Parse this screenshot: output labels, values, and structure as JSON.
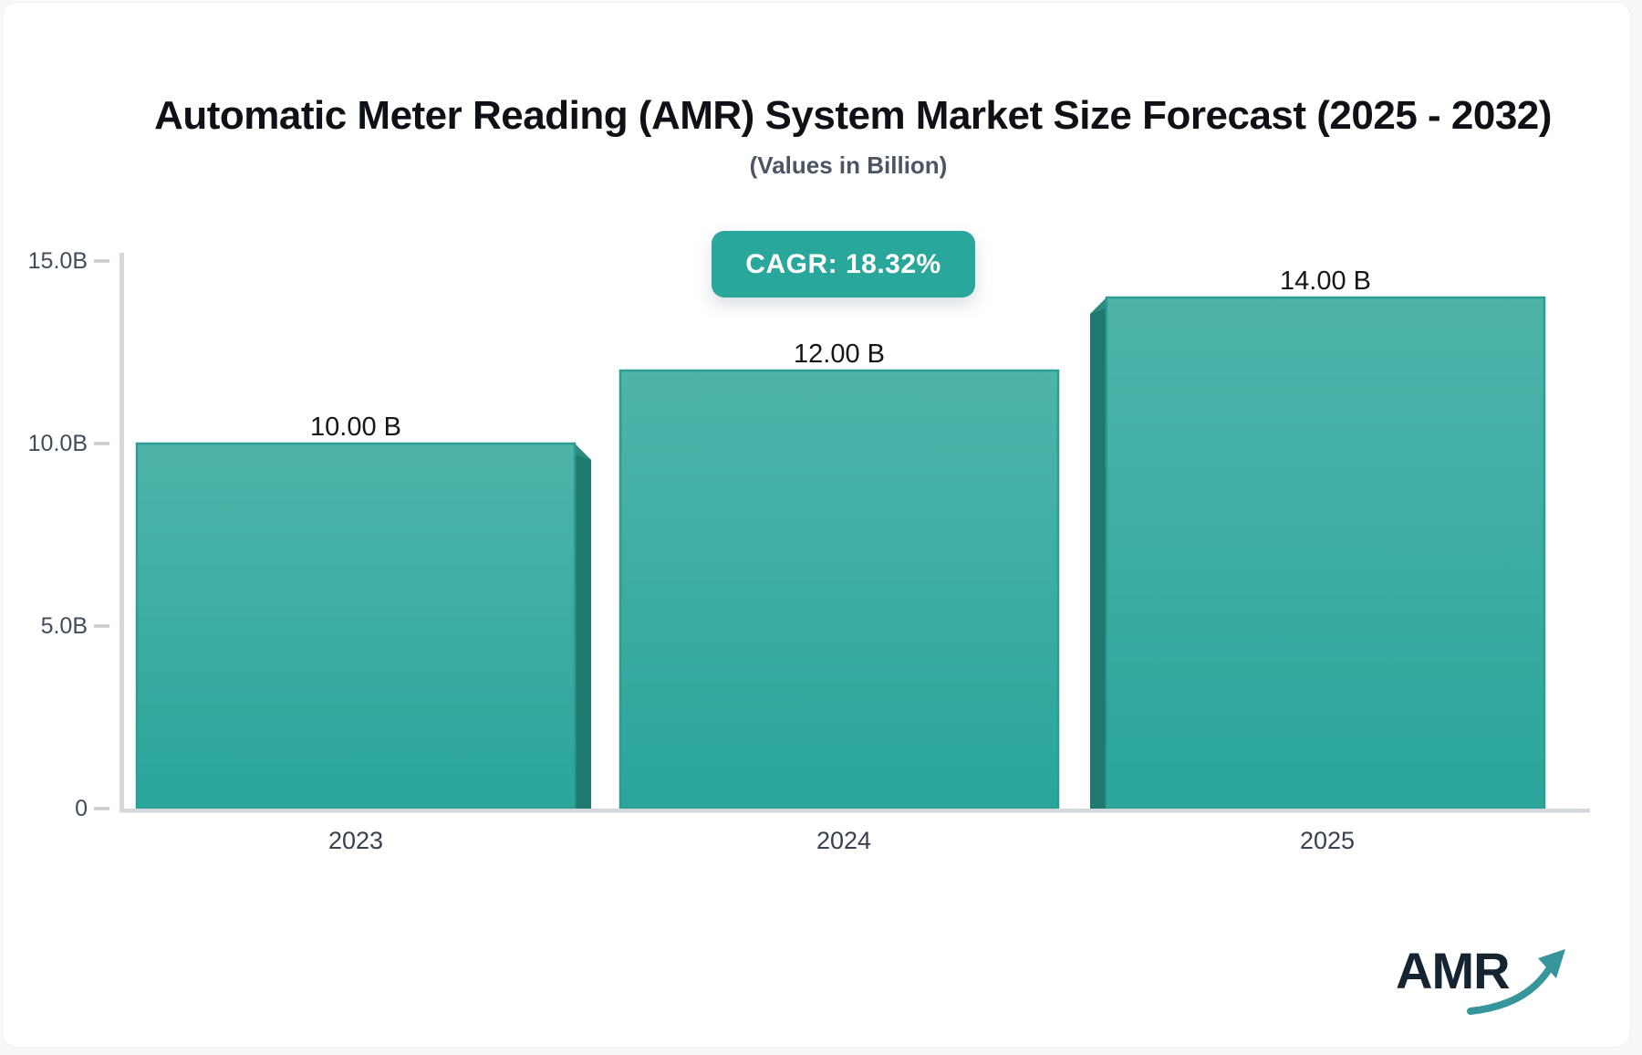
{
  "chart_data": {
    "type": "bar",
    "title": "Automatic Meter Reading (AMR) System Market Size Forecast (2025 - 2032)",
    "subtitle": "(Values in Billion)",
    "categories": [
      "2023",
      "2024",
      "2025"
    ],
    "values": [
      10,
      12,
      14
    ],
    "value_labels": [
      "10.00 B",
      "12.00 B",
      "14.00 B"
    ],
    "y_ticks": {
      "values": [
        0,
        5,
        10,
        15
      ],
      "labels": [
        "0",
        "5.0B",
        "10.0B",
        "15.0B"
      ]
    },
    "ylim": [
      0,
      15
    ],
    "xlabel": "",
    "ylabel": "",
    "grid": false,
    "legend": "none",
    "bar_style": "3d-extruded-teal-gradient"
  },
  "badge": {
    "label": "CAGR: 18.32%"
  },
  "logo": {
    "text": "AMR",
    "icon": "trend-up-arrow-icon"
  },
  "colors": {
    "badge_bg": "#2aa79b",
    "bar_top": "#4fb4aa",
    "bar_bottom": "#2aa69b",
    "bar_edge": "#2d9c92",
    "bar_side": "#1e7a70",
    "bar_bevel": "#2c8c82",
    "axis_line": "#d4d8dd",
    "tick_line": "#c6ccd2",
    "tick_label": "#414c5b",
    "x_label": "#39414e",
    "value_label": "#14171a",
    "title_color": "#0e1116",
    "subtitle_color": "#4b5563",
    "logo_text": "#152430",
    "logo_arrow": "#36969b",
    "page_bg": "#f7f8fa",
    "card_bg": "#ffffff"
  }
}
